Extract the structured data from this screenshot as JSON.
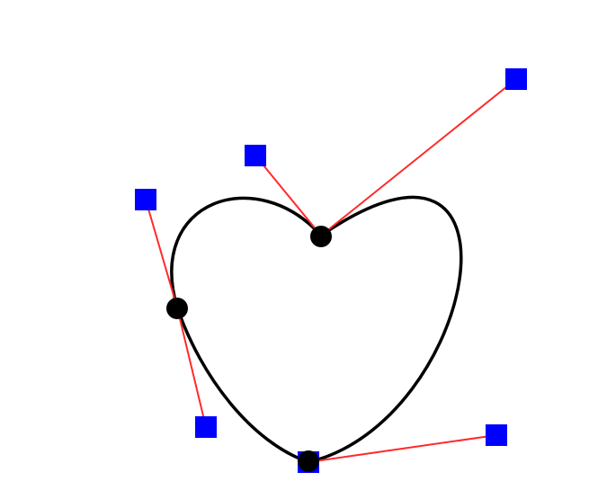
{
  "editor": {
    "curve_color": "#000000",
    "handle_line_color": "#ff2a2a",
    "control_handle_color": "#0000ff",
    "anchor_color": "#000000",
    "anchor_count": 3,
    "control_handle_count": 6
  }
}
